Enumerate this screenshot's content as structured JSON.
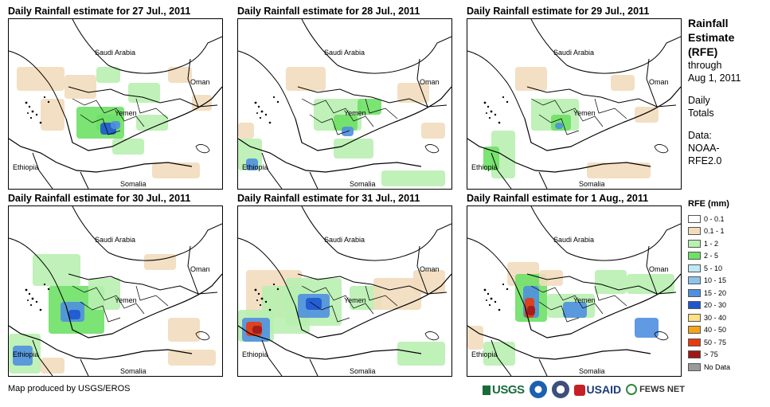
{
  "panels": [
    {
      "title": "Daily Rainfall estimate for 27 Jul., 2011"
    },
    {
      "title": "Daily Rainfall estimate for 28 Jul., 2011"
    },
    {
      "title": "Daily Rainfall estimate for 29 Jul., 2011"
    },
    {
      "title": "Daily Rainfall estimate for 30 Jul., 2011"
    },
    {
      "title": "Daily Rainfall estimate for 31 Jul., 2011"
    },
    {
      "title": "Daily Rainfall estimate for 1 Aug., 2011"
    }
  ],
  "map_labels": {
    "saudi": "Saudi Arabia",
    "oman": "Oman",
    "yemen": "Yemen",
    "ethiopia": "Ethiopia",
    "somalia": "Somalia"
  },
  "side": {
    "title_lines": [
      "Rainfall",
      "Estimate",
      "(RFE)"
    ],
    "lines": [
      "through",
      "Aug 1, 2011",
      "",
      "Daily",
      "Totals",
      "",
      "Data:",
      "NOAA-",
      "RFE2.0"
    ]
  },
  "legend": {
    "title": "RFE (mm)",
    "items": [
      {
        "label": "0 - 0.1",
        "color": "#ffffff"
      },
      {
        "label": "0.1 - 1",
        "color": "#f2dcbd"
      },
      {
        "label": "1 - 2",
        "color": "#b8f0b0"
      },
      {
        "label": "2 - 5",
        "color": "#6ee066"
      },
      {
        "label": "5 - 10",
        "color": "#bfe8f5"
      },
      {
        "label": "10 - 15",
        "color": "#8ec4ec"
      },
      {
        "label": "15 - 20",
        "color": "#4f8fe0"
      },
      {
        "label": "20 - 30",
        "color": "#1f56d0"
      },
      {
        "label": "30 - 40",
        "color": "#ffe085"
      },
      {
        "label": "40 - 50",
        "color": "#f5a41a"
      },
      {
        "label": "50 - 75",
        "color": "#e83a10"
      },
      {
        "label": "> 75",
        "color": "#a01818"
      },
      {
        "label": "No Data",
        "color": "#9a9a9a"
      }
    ]
  },
  "credit": "Map produced by USGS/EROS",
  "logos": {
    "usgs": "USGS",
    "usaid": "USAID",
    "fews": "FEWS NET"
  }
}
